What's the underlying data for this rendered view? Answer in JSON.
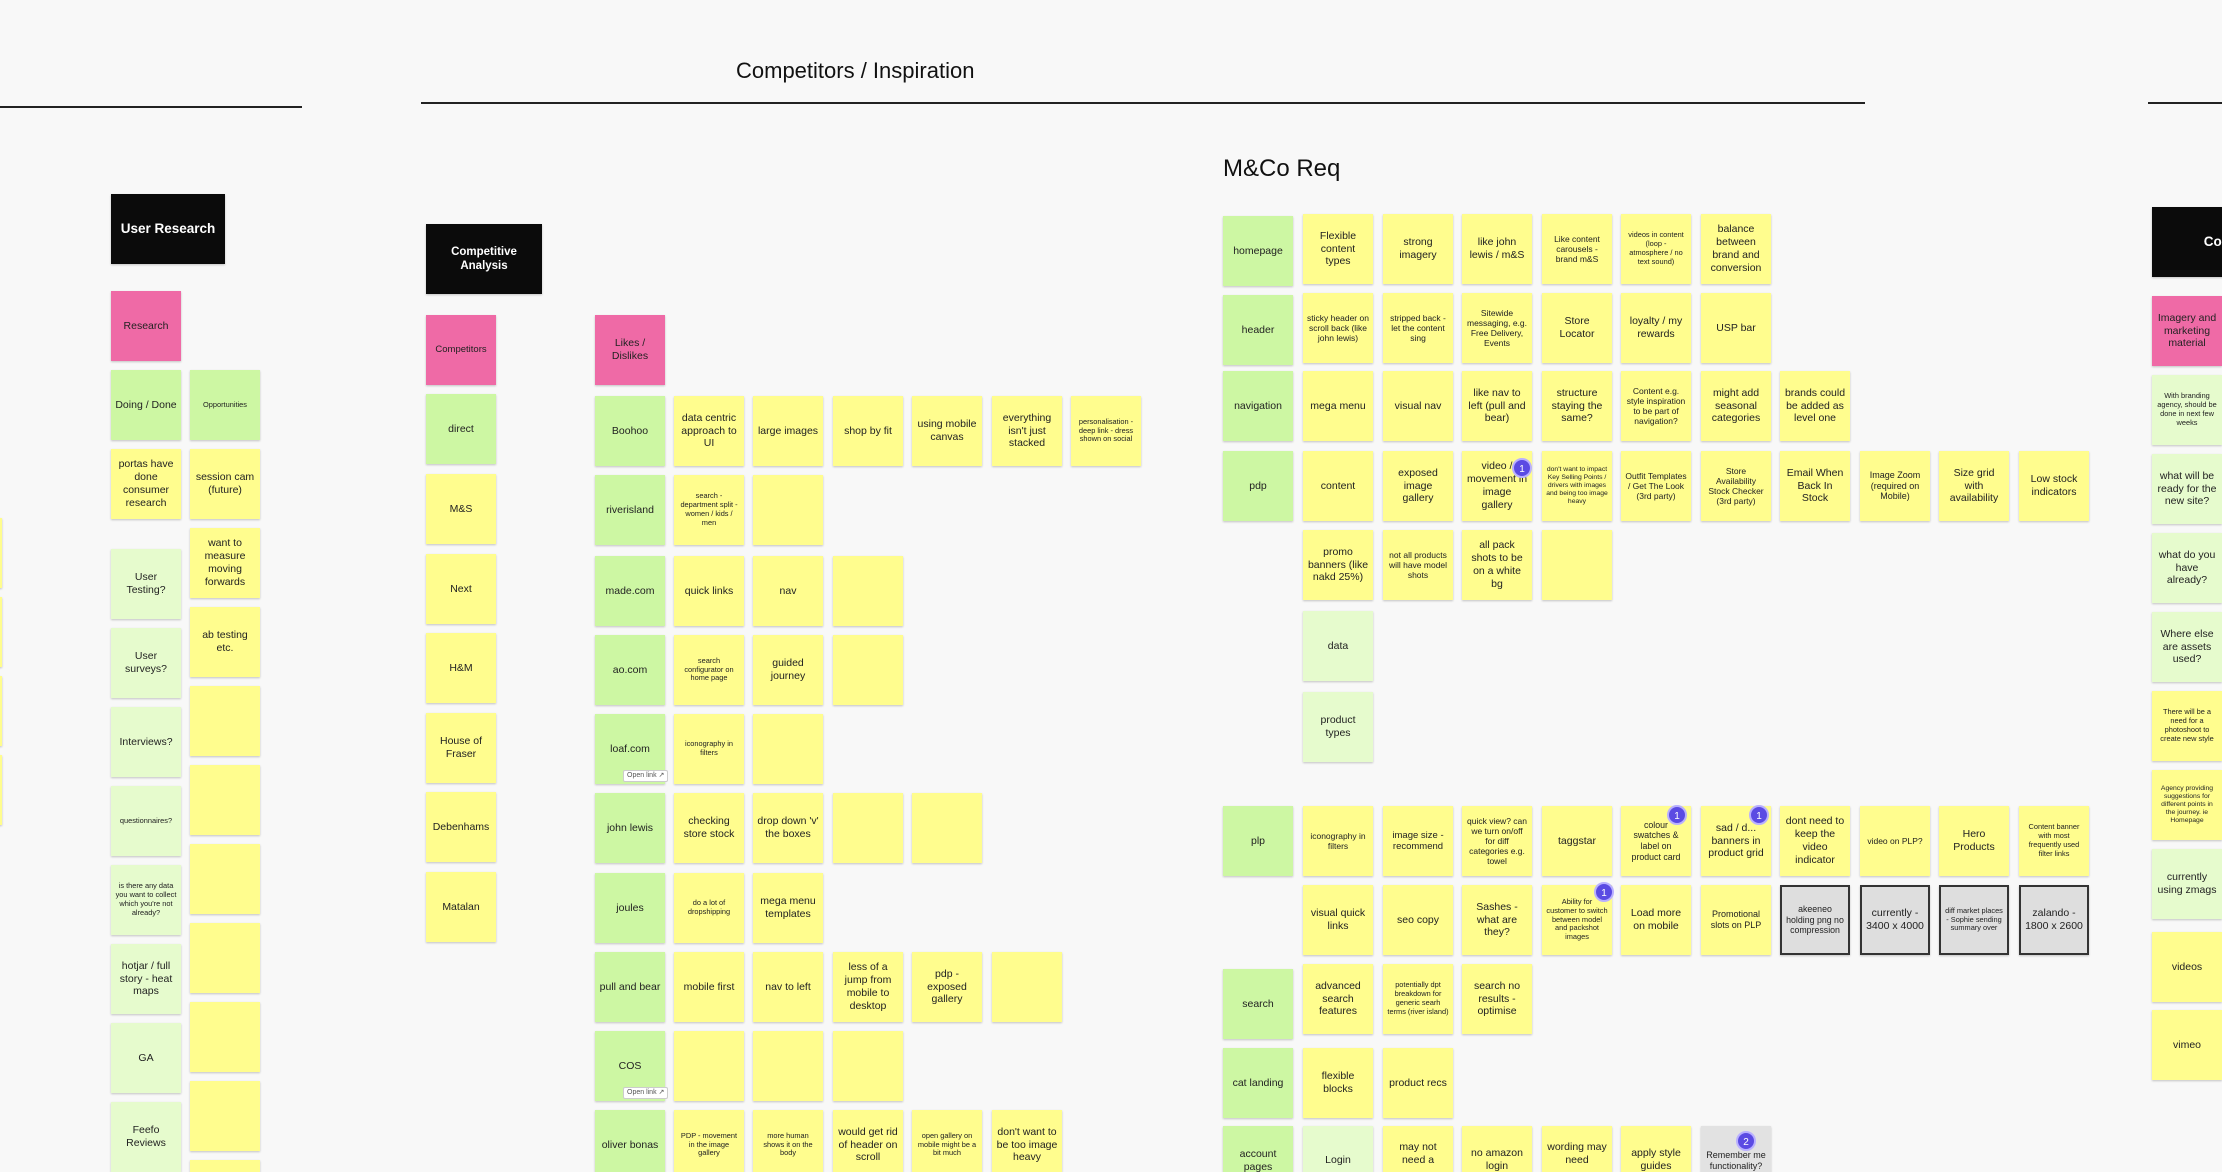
{
  "board": {
    "sections": {
      "competitors_title": "Competitors / Inspiration",
      "mco_title": "M&Co Req"
    },
    "user_research": {
      "title": "User Research",
      "research_label": "Research",
      "doing_done": "Doing / Done",
      "opportunities": "Opportunities",
      "items": [
        "portas have done consumer research",
        "User Testing?",
        "User surveys?",
        "Interviews?",
        "questionnaires?",
        "is there any data you want to collect which you're not already?",
        "hotjar / full story - heat maps",
        "GA",
        "Feefo Reviews"
      ],
      "opps": [
        "session cam (future)",
        "want to measure moving forwards",
        "ab testing etc."
      ]
    },
    "competitive_analysis": {
      "title": "Competitive Analysis",
      "competitors_label": "Competitors",
      "competitors": [
        "direct",
        "M&S",
        "Next",
        "H&M",
        "House of Fraser",
        "Debenhams",
        "Matalan"
      ],
      "likes_label": "Likes / Dislikes",
      "open_link": "Open link ↗",
      "rows": [
        {
          "site": "Boohoo",
          "notes": [
            "data centric approach to UI",
            "large images",
            "shop by fit",
            "using mobile canvas",
            "everything isn't just stacked",
            "personalisation - deep link - dress shown on social"
          ]
        },
        {
          "site": "riverisland",
          "notes": [
            "search - department split - women / kids / men",
            ""
          ]
        },
        {
          "site": "made.com",
          "notes": [
            "quick links",
            "nav",
            ""
          ]
        },
        {
          "site": "ao.com",
          "notes": [
            "search configurator on home page",
            "guided journey",
            ""
          ]
        },
        {
          "site": "loaf.com",
          "notes": [
            "iconography in filters",
            ""
          ]
        },
        {
          "site": "john lewis",
          "notes": [
            "checking store stock",
            "drop down 'v' the boxes",
            "",
            ""
          ]
        },
        {
          "site": "joules",
          "notes": [
            "do a lot of dropshipping",
            "mega menu templates"
          ]
        },
        {
          "site": "pull and bear",
          "notes": [
            "mobile first",
            "nav to left",
            "less of a jump from mobile to desktop",
            "pdp - exposed gallery",
            ""
          ]
        },
        {
          "site": "COS",
          "notes": [
            "",
            "",
            ""
          ]
        },
        {
          "site": "oliver bonas",
          "notes": [
            "PDP - movement in the image gallery",
            "more human shows it on the body",
            "would get rid of header on scroll",
            "open gallery on mobile might be a bit much",
            "don't want to be too image heavy"
          ]
        }
      ]
    },
    "mco_req": {
      "rows": [
        {
          "label": "homepage",
          "notes": [
            "Flexible content types",
            "strong imagery",
            "like john lewis / m&S",
            "Like content carousels - brand m&S",
            "videos in content (loop - atmosphere / no text sound)",
            "balance between brand and conversion"
          ]
        },
        {
          "label": "header",
          "notes": [
            "sticky header on scroll back (like john lewis)",
            "stripped back - let the content sing",
            "Sitewide messaging, e.g. Free Delivery, Events",
            "Store Locator",
            "loyalty / my rewards",
            "USP bar"
          ]
        },
        {
          "label": "navigation",
          "notes": [
            "mega menu",
            "visual nav",
            "like nav to left (pull and bear)",
            "structure staying the same?",
            "Content e.g. style inspiration to be part of navigation?",
            "might add seasonal categories",
            "brands could be added as level one"
          ]
        },
        {
          "label": "pdp",
          "notes": [
            "content",
            "exposed image gallery",
            "video / movement in image gallery",
            "don't want to impact Key Selling Points / drivers with images and being too image heavy",
            "Outfit Templates / Get The Look (3rd party)",
            "Store Availability Stock Checker (3rd party)",
            "Email When Back In Stock",
            "Image Zoom (required on Mobile)",
            "Size grid with availability",
            "Low stock indicators"
          ]
        },
        {
          "label": "",
          "notes": [
            "promo banners (like nakd 25%)",
            "not all products will have model shots",
            "all pack shots to be on a white bg",
            ""
          ]
        },
        {
          "label": "",
          "notes": [
            "data"
          ]
        },
        {
          "label": "",
          "notes": [
            "product types"
          ]
        },
        {
          "label": "plp",
          "notes": [
            "iconography in filters",
            "image size - recommend",
            "quick view? can we turn on/off for diff categories e.g. towel",
            "taggstar",
            "colour swatches & label on product card",
            "sad / d... banners in product grid",
            "dont need to keep the video indicator",
            "video on PLP?",
            "Hero Products",
            "Content banner with most frequently used filter links"
          ]
        },
        {
          "label": "",
          "notes": [
            "visual quick links",
            "seo copy",
            "Sashes - what are they?",
            "Ability for customer to switch between model and packshot images",
            "Load more on mobile",
            "Promotional slots on PLP",
            "akeeneo holding png no compression",
            "currently - 3400 x 4000",
            "diff market places - Sophie sending summary over",
            "zalando - 1800 x 2600"
          ]
        },
        {
          "label": "search",
          "notes": [
            "advanced search features",
            "potentially dpt breakdown for generic searh terms (river island)",
            "search no results - optimise"
          ]
        },
        {
          "label": "cat landing",
          "notes": [
            "flexible blocks",
            "product recs"
          ]
        },
        {
          "label": "account pages",
          "notes": [
            "Login",
            "may not need a",
            "no amazon login",
            "wording may need",
            "apply style guides",
            "Remember me functionality?"
          ]
        }
      ],
      "badges": [
        "1",
        "1",
        "1",
        "1",
        "2"
      ]
    },
    "content": {
      "title": "Conte",
      "imagery_label": "Imagery and marketing material",
      "items": [
        "With branding agency, should be done in next few weeks",
        "what will be ready for the new site?",
        "what do you have already?",
        "Where else are assets used?",
        "There will be a need for a photoshoot to create new style",
        "Agency providing suggestions for different points in the journey. ie Homepage",
        "currently using zmags",
        "videos",
        "vimeo"
      ]
    }
  }
}
